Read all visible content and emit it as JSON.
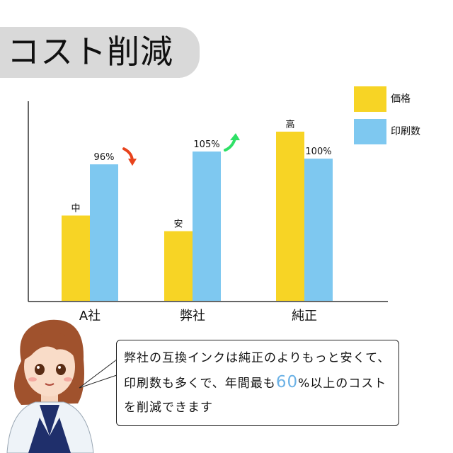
{
  "title": "コスト削減",
  "colors": {
    "price": "#f7d425",
    "prints": "#7ec8f0",
    "arrow_down": "#e8431c",
    "arrow_up": "#2ee066",
    "title_bg": "#d9d9d9",
    "highlight": "#6cb2e6"
  },
  "legend": [
    {
      "label": "価格",
      "color": "#f7d425"
    },
    {
      "label": "印刷数",
      "color": "#7ec8f0"
    }
  ],
  "chart_data": {
    "type": "bar",
    "categories": [
      "A社",
      "弊社",
      "純正"
    ],
    "series": [
      {
        "name": "価格",
        "values": [
          60,
          49,
          119
        ],
        "labels": [
          "中",
          "安",
          "高"
        ]
      },
      {
        "name": "印刷数",
        "values": [
          96,
          105,
          100
        ],
        "labels": [
          "96%",
          "105%",
          "100%"
        ]
      }
    ],
    "ylim": [
      0,
      140
    ],
    "grid": false,
    "legend_position": "top-right",
    "annotations": [
      {
        "category": "A社",
        "marker": "arrow-down"
      },
      {
        "category": "弊社",
        "marker": "arrow-up"
      }
    ]
  },
  "bubble": {
    "text_before": "弊社の互換インクは純正のよりもっと安くて、印刷数も多くで、年間最も",
    "highlight": "60",
    "text_after": "%以上のコストを削減できます"
  }
}
